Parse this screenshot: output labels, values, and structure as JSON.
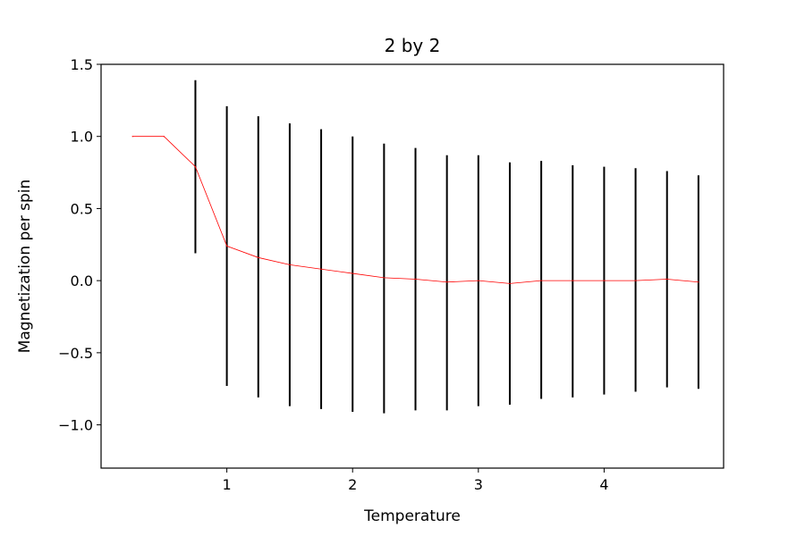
{
  "chart_data": {
    "type": "line",
    "title": "2 by 2",
    "xlabel": "Temperature",
    "ylabel": "Magnetization per spin",
    "xlim": [
      0.0,
      4.95
    ],
    "ylim": [
      -1.3,
      1.5
    ],
    "xticks": [
      1,
      2,
      3,
      4
    ],
    "yticks": [
      1.5,
      1.0,
      0.5,
      0.0,
      -0.5,
      -1.0
    ],
    "ytick_labels": [
      "1.5",
      "1.0",
      "0.5",
      "0.0",
      "−0.5",
      "−1.0"
    ],
    "grid": false,
    "series": [
      {
        "line_color": "#ff0000",
        "errorbar_color": "#000000",
        "points": [
          {
            "x": 0.25,
            "y": 1.0,
            "lo": 1.0,
            "hi": 1.0
          },
          {
            "x": 0.5,
            "y": 1.0,
            "lo": 1.0,
            "hi": 1.0
          },
          {
            "x": 0.75,
            "y": 0.79,
            "lo": 0.19,
            "hi": 1.39
          },
          {
            "x": 1.0,
            "y": 0.24,
            "lo": -0.73,
            "hi": 1.21
          },
          {
            "x": 1.25,
            "y": 0.16,
            "lo": -0.81,
            "hi": 1.14
          },
          {
            "x": 1.5,
            "y": 0.11,
            "lo": -0.87,
            "hi": 1.09
          },
          {
            "x": 1.75,
            "y": 0.08,
            "lo": -0.89,
            "hi": 1.05
          },
          {
            "x": 2.0,
            "y": 0.05,
            "lo": -0.91,
            "hi": 1.0
          },
          {
            "x": 2.25,
            "y": 0.02,
            "lo": -0.92,
            "hi": 0.95
          },
          {
            "x": 2.5,
            "y": 0.01,
            "lo": -0.9,
            "hi": 0.92
          },
          {
            "x": 2.75,
            "y": -0.01,
            "lo": -0.9,
            "hi": 0.87
          },
          {
            "x": 3.0,
            "y": 0.0,
            "lo": -0.87,
            "hi": 0.87
          },
          {
            "x": 3.25,
            "y": -0.02,
            "lo": -0.86,
            "hi": 0.82
          },
          {
            "x": 3.5,
            "y": 0.0,
            "lo": -0.82,
            "hi": 0.83
          },
          {
            "x": 3.75,
            "y": 0.0,
            "lo": -0.81,
            "hi": 0.8
          },
          {
            "x": 4.0,
            "y": 0.0,
            "lo": -0.79,
            "hi": 0.79
          },
          {
            "x": 4.25,
            "y": 0.0,
            "lo": -0.77,
            "hi": 0.78
          },
          {
            "x": 4.5,
            "y": 0.01,
            "lo": -0.74,
            "hi": 0.76
          },
          {
            "x": 4.75,
            "y": -0.01,
            "lo": -0.75,
            "hi": 0.73
          }
        ]
      }
    ]
  }
}
